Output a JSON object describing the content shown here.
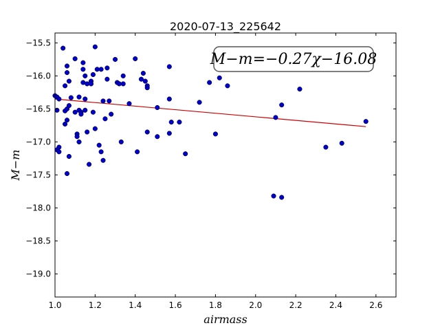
{
  "chart_data": {
    "type": "scatter",
    "title": "2020-07-13_225642",
    "xlabel": "airmass",
    "ylabel": "M−m",
    "xlim": [
      1.0,
      2.7
    ],
    "ylim": [
      -19.35,
      -15.35
    ],
    "y_inverted": true,
    "xticks": [
      1.0,
      1.2,
      1.4,
      1.6,
      1.8,
      2.0,
      2.2,
      2.4,
      2.6
    ],
    "xtick_labels": [
      "1.0",
      "1.2",
      "1.4",
      "1.6",
      "1.8",
      "2.0",
      "2.2",
      "2.4",
      "2.6"
    ],
    "yticks": [
      -15.5,
      -16.0,
      -16.5,
      -17.0,
      -17.5,
      -18.0,
      -18.5,
      -19.0
    ],
    "ytick_labels": [
      "−15.5",
      "−16.0",
      "−16.5",
      "−17.0",
      "−17.5",
      "−18.0",
      "−18.5",
      "−19.0"
    ],
    "annotation": "M−m=−0.27χ−16.08",
    "point_color": "#0000cc",
    "fit_color": "#cc0000",
    "fit": {
      "slope": -0.27,
      "intercept": -16.08,
      "x_range": [
        1.0,
        2.55
      ]
    },
    "points": [
      [
        1.0,
        -16.3
      ],
      [
        1.01,
        -16.32
      ],
      [
        1.01,
        -16.52
      ],
      [
        1.02,
        -16.35
      ],
      [
        1.02,
        -17.08
      ],
      [
        1.01,
        -17.12
      ],
      [
        1.02,
        -17.15
      ],
      [
        1.04,
        -15.58
      ],
      [
        1.05,
        -16.15
      ],
      [
        1.05,
        -16.53
      ],
      [
        1.06,
        -15.85
      ],
      [
        1.06,
        -15.95
      ],
      [
        1.06,
        -16.5
      ],
      [
        1.06,
        -16.67
      ],
      [
        1.05,
        -16.73
      ],
      [
        1.06,
        -17.48
      ],
      [
        1.07,
        -17.22
      ],
      [
        1.07,
        -16.08
      ],
      [
        1.07,
        -16.45
      ],
      [
        1.08,
        -16.33
      ],
      [
        1.1,
        -15.74
      ],
      [
        1.1,
        -16.55
      ],
      [
        1.11,
        -16.88
      ],
      [
        1.11,
        -16.92
      ],
      [
        1.12,
        -17.0
      ],
      [
        1.12,
        -16.32
      ],
      [
        1.12,
        -16.52
      ],
      [
        1.13,
        -16.55
      ],
      [
        1.13,
        -16.58
      ],
      [
        1.14,
        -15.8
      ],
      [
        1.14,
        -15.9
      ],
      [
        1.14,
        -16.1
      ],
      [
        1.15,
        -16.0
      ],
      [
        1.15,
        -16.35
      ],
      [
        1.15,
        -16.52
      ],
      [
        1.16,
        -16.12
      ],
      [
        1.16,
        -16.85
      ],
      [
        1.17,
        -17.34
      ],
      [
        1.18,
        -16.08
      ],
      [
        1.18,
        -16.12
      ],
      [
        1.19,
        -16.55
      ],
      [
        1.19,
        -15.98
      ],
      [
        1.2,
        -15.56
      ],
      [
        1.2,
        -16.8
      ],
      [
        1.21,
        -15.9
      ],
      [
        1.22,
        -17.05
      ],
      [
        1.23,
        -15.9
      ],
      [
        1.23,
        -17.15
      ],
      [
        1.24,
        -17.28
      ],
      [
        1.24,
        -16.38
      ],
      [
        1.25,
        -16.65
      ],
      [
        1.26,
        -15.88
      ],
      [
        1.26,
        -16.05
      ],
      [
        1.27,
        -16.38
      ],
      [
        1.28,
        -16.58
      ],
      [
        1.3,
        -15.75
      ],
      [
        1.31,
        -16.1
      ],
      [
        1.32,
        -16.12
      ],
      [
        1.33,
        -17.0
      ],
      [
        1.34,
        -16.0
      ],
      [
        1.34,
        -16.12
      ],
      [
        1.37,
        -16.42
      ],
      [
        1.4,
        -15.74
      ],
      [
        1.41,
        -17.15
      ],
      [
        1.43,
        -16.05
      ],
      [
        1.44,
        -15.96
      ],
      [
        1.45,
        -16.08
      ],
      [
        1.46,
        -16.15
      ],
      [
        1.46,
        -16.18
      ],
      [
        1.46,
        -16.85
      ],
      [
        1.51,
        -16.48
      ],
      [
        1.51,
        -16.92
      ],
      [
        1.57,
        -15.86
      ],
      [
        1.57,
        -16.35
      ],
      [
        1.57,
        -16.87
      ],
      [
        1.58,
        -16.7
      ],
      [
        1.62,
        -16.7
      ],
      [
        1.65,
        -17.18
      ],
      [
        1.72,
        -16.4
      ],
      [
        1.77,
        -16.1
      ],
      [
        1.8,
        -16.88
      ],
      [
        1.82,
        -16.03
      ],
      [
        1.86,
        -16.15
      ],
      [
        2.09,
        -17.82
      ],
      [
        2.1,
        -16.63
      ],
      [
        2.13,
        -16.44
      ],
      [
        2.13,
        -17.84
      ],
      [
        2.22,
        -16.2
      ],
      [
        2.35,
        -17.08
      ],
      [
        2.43,
        -17.02
      ],
      [
        2.55,
        -16.69
      ]
    ]
  }
}
